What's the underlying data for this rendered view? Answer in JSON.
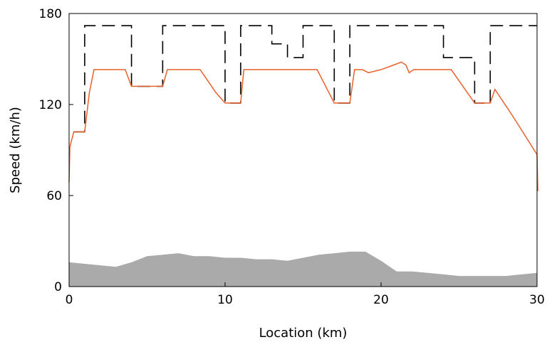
{
  "chart_data": {
    "type": "line",
    "title": "",
    "xlabel": "Location (km)",
    "ylabel": "Speed (km/h)",
    "xlim": [
      0,
      30
    ],
    "ylim": [
      0,
      180
    ],
    "xticks": [
      0,
      10,
      20,
      30
    ],
    "yticks": [
      0,
      60,
      120,
      180
    ],
    "grid": false,
    "legend": "none",
    "series": [
      {
        "kind": "area",
        "color": "#aaaaaa",
        "points": [
          [
            0,
            16
          ],
          [
            1,
            15
          ],
          [
            2,
            14
          ],
          [
            3,
            13
          ],
          [
            4,
            16
          ],
          [
            5,
            20
          ],
          [
            6,
            21
          ],
          [
            7,
            22
          ],
          [
            8,
            20
          ],
          [
            9,
            20
          ],
          [
            10,
            19
          ],
          [
            11,
            19
          ],
          [
            12,
            18
          ],
          [
            13,
            18
          ],
          [
            14,
            17
          ],
          [
            15,
            19
          ],
          [
            16,
            21
          ],
          [
            17,
            22
          ],
          [
            18,
            23
          ],
          [
            19,
            23
          ],
          [
            20,
            17
          ],
          [
            21,
            10
          ],
          [
            22,
            10
          ],
          [
            23,
            9
          ],
          [
            24,
            8
          ],
          [
            25,
            7
          ],
          [
            26,
            7
          ],
          [
            27,
            7
          ],
          [
            28,
            7
          ],
          [
            29,
            8
          ],
          [
            30,
            9
          ]
        ]
      },
      {
        "kind": "dashed-step",
        "color": "#000000",
        "points": [
          [
            0.3,
            102
          ],
          [
            1,
            102
          ],
          [
            1,
            172
          ],
          [
            4,
            172
          ],
          [
            4,
            132
          ],
          [
            6,
            132
          ],
          [
            6,
            172
          ],
          [
            10,
            172
          ],
          [
            10,
            121
          ],
          [
            11,
            121
          ],
          [
            11,
            172
          ],
          [
            13,
            172
          ],
          [
            13,
            160
          ],
          [
            14,
            160
          ],
          [
            14,
            151
          ],
          [
            15,
            151
          ],
          [
            15,
            172
          ],
          [
            17,
            172
          ],
          [
            17,
            121
          ],
          [
            18,
            121
          ],
          [
            18,
            172
          ],
          [
            24,
            172
          ],
          [
            24,
            151
          ],
          [
            26,
            151
          ],
          [
            26,
            121
          ],
          [
            27,
            121
          ],
          [
            27,
            172
          ],
          [
            30,
            172
          ]
        ]
      },
      {
        "kind": "line",
        "color": "#e8612c",
        "points": [
          [
            0,
            69
          ],
          [
            0.05,
            92
          ],
          [
            0.3,
            102
          ],
          [
            1.0,
            102
          ],
          [
            1.3,
            128
          ],
          [
            1.6,
            143
          ],
          [
            3.6,
            143
          ],
          [
            4.0,
            132
          ],
          [
            6.0,
            132
          ],
          [
            6.3,
            143
          ],
          [
            8.4,
            143
          ],
          [
            9.4,
            128
          ],
          [
            10.0,
            121
          ],
          [
            11.0,
            121
          ],
          [
            11.2,
            143
          ],
          [
            15.9,
            143
          ],
          [
            17.0,
            121
          ],
          [
            18.0,
            121
          ],
          [
            18.3,
            143
          ],
          [
            18.8,
            143
          ],
          [
            19.2,
            141
          ],
          [
            20.0,
            143
          ],
          [
            20.8,
            146
          ],
          [
            21.3,
            148
          ],
          [
            21.6,
            146
          ],
          [
            21.8,
            141
          ],
          [
            22.1,
            143
          ],
          [
            24.5,
            143
          ],
          [
            26.0,
            121
          ],
          [
            27.0,
            121
          ],
          [
            27.3,
            130
          ],
          [
            28.4,
            113
          ],
          [
            30.0,
            87
          ],
          [
            30.05,
            63
          ]
        ]
      }
    ]
  }
}
